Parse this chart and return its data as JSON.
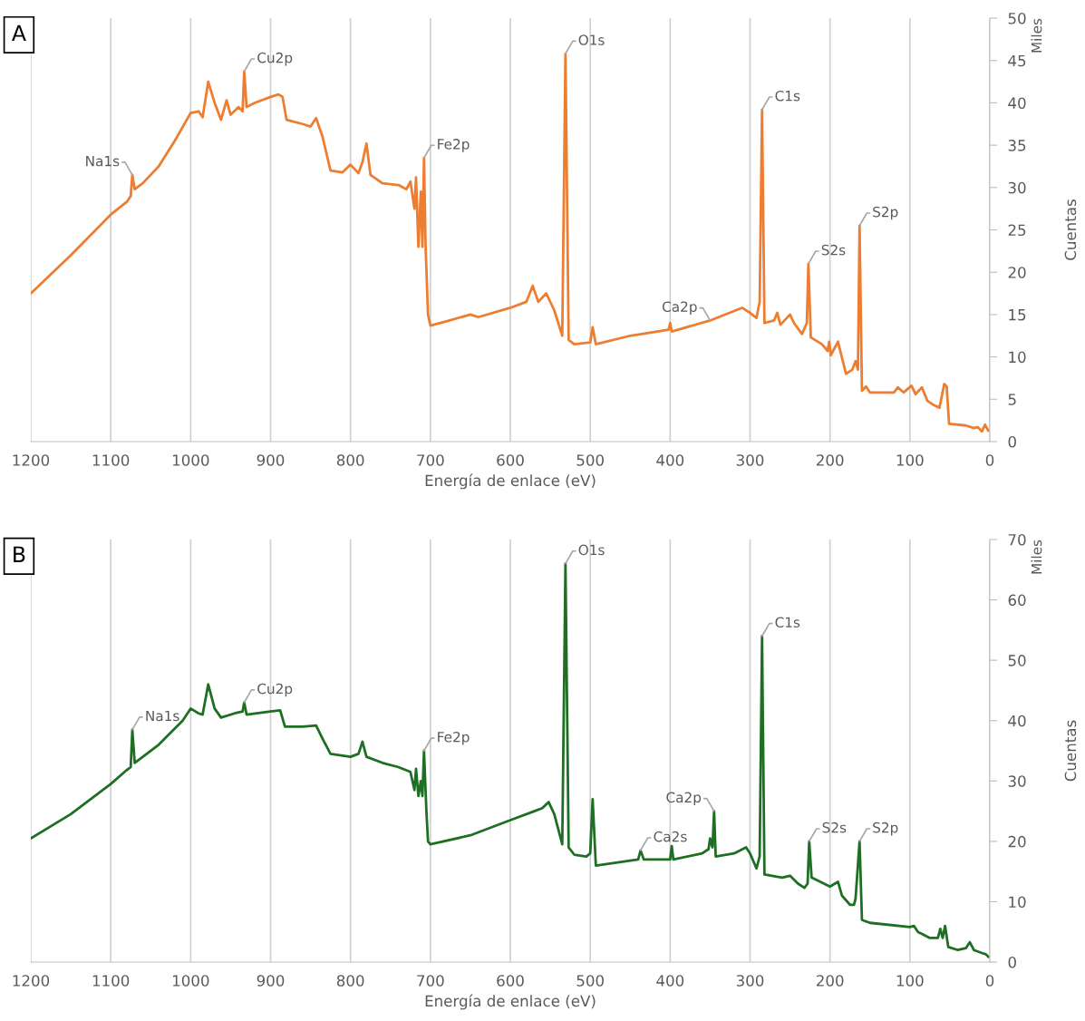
{
  "chart_data": [
    {
      "type": "line",
      "title": "A",
      "xlabel": "Energía de enlace (eV)",
      "ylabel": "Cuentas",
      "xlim": [
        1200,
        0
      ],
      "xticks": [
        1200,
        1100,
        1000,
        900,
        800,
        700,
        600,
        500,
        400,
        300,
        200,
        100,
        0
      ],
      "ylim": [
        0,
        50
      ],
      "yticks": [
        0,
        5,
        10,
        15,
        20,
        25,
        30,
        35,
        40,
        45,
        50
      ],
      "grid": "x",
      "legend": false,
      "series": [
        {
          "color": "#ed7d31",
          "x": [
            1200,
            1150,
            1100,
            1080,
            1075,
            1073,
            1070,
            1060,
            1040,
            1020,
            1000,
            990,
            985,
            978,
            970,
            962,
            955,
            950,
            940,
            935,
            933,
            930,
            920,
            900,
            890,
            885,
            880,
            860,
            850,
            843,
            835,
            825,
            810,
            800,
            790,
            785,
            780,
            775,
            760,
            740,
            730,
            725,
            720,
            718,
            715,
            712,
            710,
            708,
            706,
            703,
            700,
            680,
            650,
            640,
            600,
            580,
            572,
            565,
            555,
            545,
            535,
            531,
            527,
            520,
            500,
            497,
            493,
            450,
            402,
            400,
            398,
            350,
            310,
            300,
            292,
            288,
            285,
            282,
            270,
            266,
            262,
            250,
            245,
            235,
            229,
            227,
            224,
            210,
            203,
            201,
            199,
            190,
            180,
            172,
            168,
            165,
            163,
            160,
            155,
            150,
            120,
            115,
            108,
            98,
            93,
            85,
            78,
            70,
            63,
            57,
            54,
            51,
            30,
            20,
            15,
            10,
            6,
            2
          ],
          "values": [
            17.5,
            22,
            26.8,
            28.3,
            29,
            31.5,
            29.8,
            30.5,
            32.5,
            35.5,
            38.8,
            39,
            38.3,
            42.5,
            40,
            38,
            40.3,
            38.6,
            39.5,
            39,
            43.7,
            39.5,
            40,
            40.7,
            41,
            40.7,
            38,
            37.5,
            37.2,
            38.2,
            36,
            32,
            31.8,
            32.7,
            31.7,
            33,
            35.2,
            31.5,
            30.5,
            30.3,
            29.8,
            30.7,
            27.5,
            31.2,
            23,
            29.5,
            23,
            33.5,
            23,
            15,
            13.7,
            14.2,
            15,
            14.7,
            15.8,
            16.5,
            18.4,
            16.5,
            17.5,
            15.5,
            12.5,
            45.8,
            12,
            11.5,
            11.7,
            13.5,
            11.5,
            12.5,
            13.2,
            14,
            13,
            14.3,
            15.8,
            15.2,
            14.6,
            16.5,
            39.2,
            14,
            14.3,
            15.2,
            13.8,
            15,
            14,
            12.7,
            14,
            21,
            12.3,
            11.5,
            10.7,
            11.8,
            10.2,
            11.8,
            8,
            8.5,
            9.5,
            8.5,
            25.5,
            6,
            6.5,
            5.8,
            5.8,
            6.4,
            5.8,
            6.6,
            5.6,
            6.4,
            4.8,
            4.3,
            4,
            6.8,
            6.5,
            2.1,
            1.9,
            1.6,
            1.7,
            1.2,
            2,
            1.3
          ]
        }
      ],
      "annotations": [
        "Miles",
        {
          "text": "Na1s",
          "x": 1073,
          "y": 31.5
        },
        {
          "text": "Cu2p",
          "x": 933,
          "y": 43.7
        },
        {
          "text": "Fe2p",
          "x": 708,
          "y": 33.5
        },
        {
          "text": "O1s",
          "x": 531,
          "y": 45.8
        },
        {
          "text": "Ca2p",
          "x": 350,
          "y": 14.3
        },
        {
          "text": "C1s",
          "x": 285,
          "y": 39.2
        },
        {
          "text": "S2s",
          "x": 227,
          "y": 21
        },
        {
          "text": "S2p",
          "x": 163,
          "y": 25.5
        }
      ]
    },
    {
      "type": "line",
      "title": "B",
      "xlabel": "Energía de enlace (eV)",
      "ylabel": "Cuentas",
      "xlim": [
        1200,
        0
      ],
      "xticks": [
        1200,
        1100,
        1000,
        900,
        800,
        700,
        600,
        500,
        400,
        300,
        200,
        100,
        0
      ],
      "ylim": [
        0,
        70
      ],
      "yticks": [
        0,
        10,
        20,
        30,
        40,
        50,
        60,
        70
      ],
      "grid": "x",
      "legend": false,
      "series": [
        {
          "color": "#1e6f24",
          "x": [
            1200,
            1150,
            1100,
            1080,
            1075,
            1073,
            1070,
            1040,
            1010,
            1000,
            990,
            985,
            978,
            970,
            962,
            945,
            935,
            933,
            930,
            900,
            888,
            882,
            860,
            843,
            835,
            825,
            800,
            790,
            785,
            780,
            760,
            740,
            725,
            720,
            718,
            715,
            712,
            710,
            708,
            705,
            703,
            700,
            650,
            600,
            570,
            560,
            552,
            545,
            535,
            531,
            527,
            520,
            505,
            500,
            497,
            493,
            450,
            440,
            437,
            433,
            400,
            398,
            396,
            360,
            352,
            350,
            347,
            345,
            343,
            320,
            305,
            300,
            292,
            288,
            285,
            282,
            260,
            250,
            240,
            232,
            228,
            226,
            223,
            200,
            190,
            185,
            175,
            170,
            168,
            163,
            160,
            150,
            100,
            95,
            90,
            75,
            65,
            62,
            59,
            56,
            52,
            40,
            30,
            25,
            20,
            10,
            5,
            2
          ],
          "values": [
            20.5,
            24.5,
            29.5,
            31.8,
            32.3,
            38.5,
            33,
            36,
            40,
            42,
            41.2,
            41,
            46,
            42,
            40.5,
            41.2,
            41.5,
            43,
            41,
            41.5,
            41.7,
            39,
            39,
            39.2,
            37,
            34.5,
            34,
            34.5,
            36.5,
            34,
            33,
            32.3,
            31.5,
            28.5,
            32,
            27.5,
            30,
            27.5,
            35,
            25,
            20,
            19.5,
            21,
            23.5,
            25,
            25.5,
            26.5,
            24.5,
            19.5,
            66,
            19,
            17.8,
            17.5,
            18,
            27,
            16,
            16.8,
            17,
            18.5,
            17,
            17,
            19.2,
            17,
            18,
            18.7,
            20.5,
            19,
            25,
            17.5,
            18,
            19,
            18,
            15.5,
            17.5,
            54,
            14.5,
            14,
            14.3,
            13,
            12.3,
            13,
            20,
            14,
            12.5,
            13.3,
            11,
            9.5,
            9.5,
            10.5,
            20,
            7,
            6.5,
            5.8,
            6,
            5,
            4,
            4,
            5.5,
            4,
            6,
            2.5,
            2,
            2.3,
            3.3,
            2,
            1.5,
            1.3,
            0.9
          ]
        }
      ],
      "annotations": [
        "Miles",
        {
          "text": "Na1s",
          "x": 1073,
          "y": 38.5
        },
        {
          "text": "Cu2p",
          "x": 933,
          "y": 43
        },
        {
          "text": "Fe2p",
          "x": 708,
          "y": 35
        },
        {
          "text": "O1s",
          "x": 531,
          "y": 66
        },
        {
          "text": "Ca2s",
          "x": 437,
          "y": 18.5
        },
        {
          "text": "Ca2p",
          "x": 345,
          "y": 25
        },
        {
          "text": "C1s",
          "x": 285,
          "y": 54
        },
        {
          "text": "S2s",
          "x": 226,
          "y": 20
        },
        {
          "text": "S2p",
          "x": 163,
          "y": 20
        }
      ]
    }
  ]
}
